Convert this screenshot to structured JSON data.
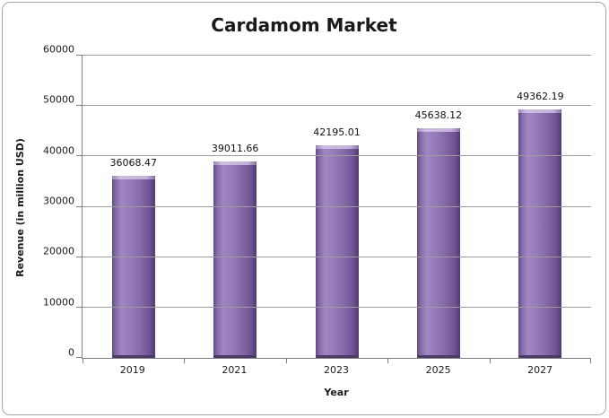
{
  "chart_data": {
    "type": "bar",
    "title": "Cardamom Market",
    "categories": [
      "2019",
      "2021",
      "2023",
      "2025",
      "2027"
    ],
    "values": [
      36068.47,
      39011.66,
      42195.01,
      45638.12,
      49362.19
    ],
    "value_labels": [
      "36068.47",
      "39011.66",
      "42195.01",
      "45638.12",
      "49362.19"
    ],
    "xlabel": "Year",
    "ylabel": "Revenue (in million USD)",
    "ylim": [
      0,
      60000
    ],
    "yticks": [
      0,
      10000,
      20000,
      30000,
      40000,
      50000,
      60000
    ],
    "ytick_labels": [
      "0",
      "10000",
      "20000",
      "30000",
      "40000",
      "50000",
      "60000"
    ],
    "grid": true,
    "legend": "none",
    "bar_color": "#8064A2",
    "bar_highlight_color": "#c4b2d9",
    "bar_shadow_color": "#4c3869",
    "axis_color": "#7f7f7f",
    "gridline_color": "#9c9c9c",
    "frame_border_color": "#a6a6a6"
  }
}
